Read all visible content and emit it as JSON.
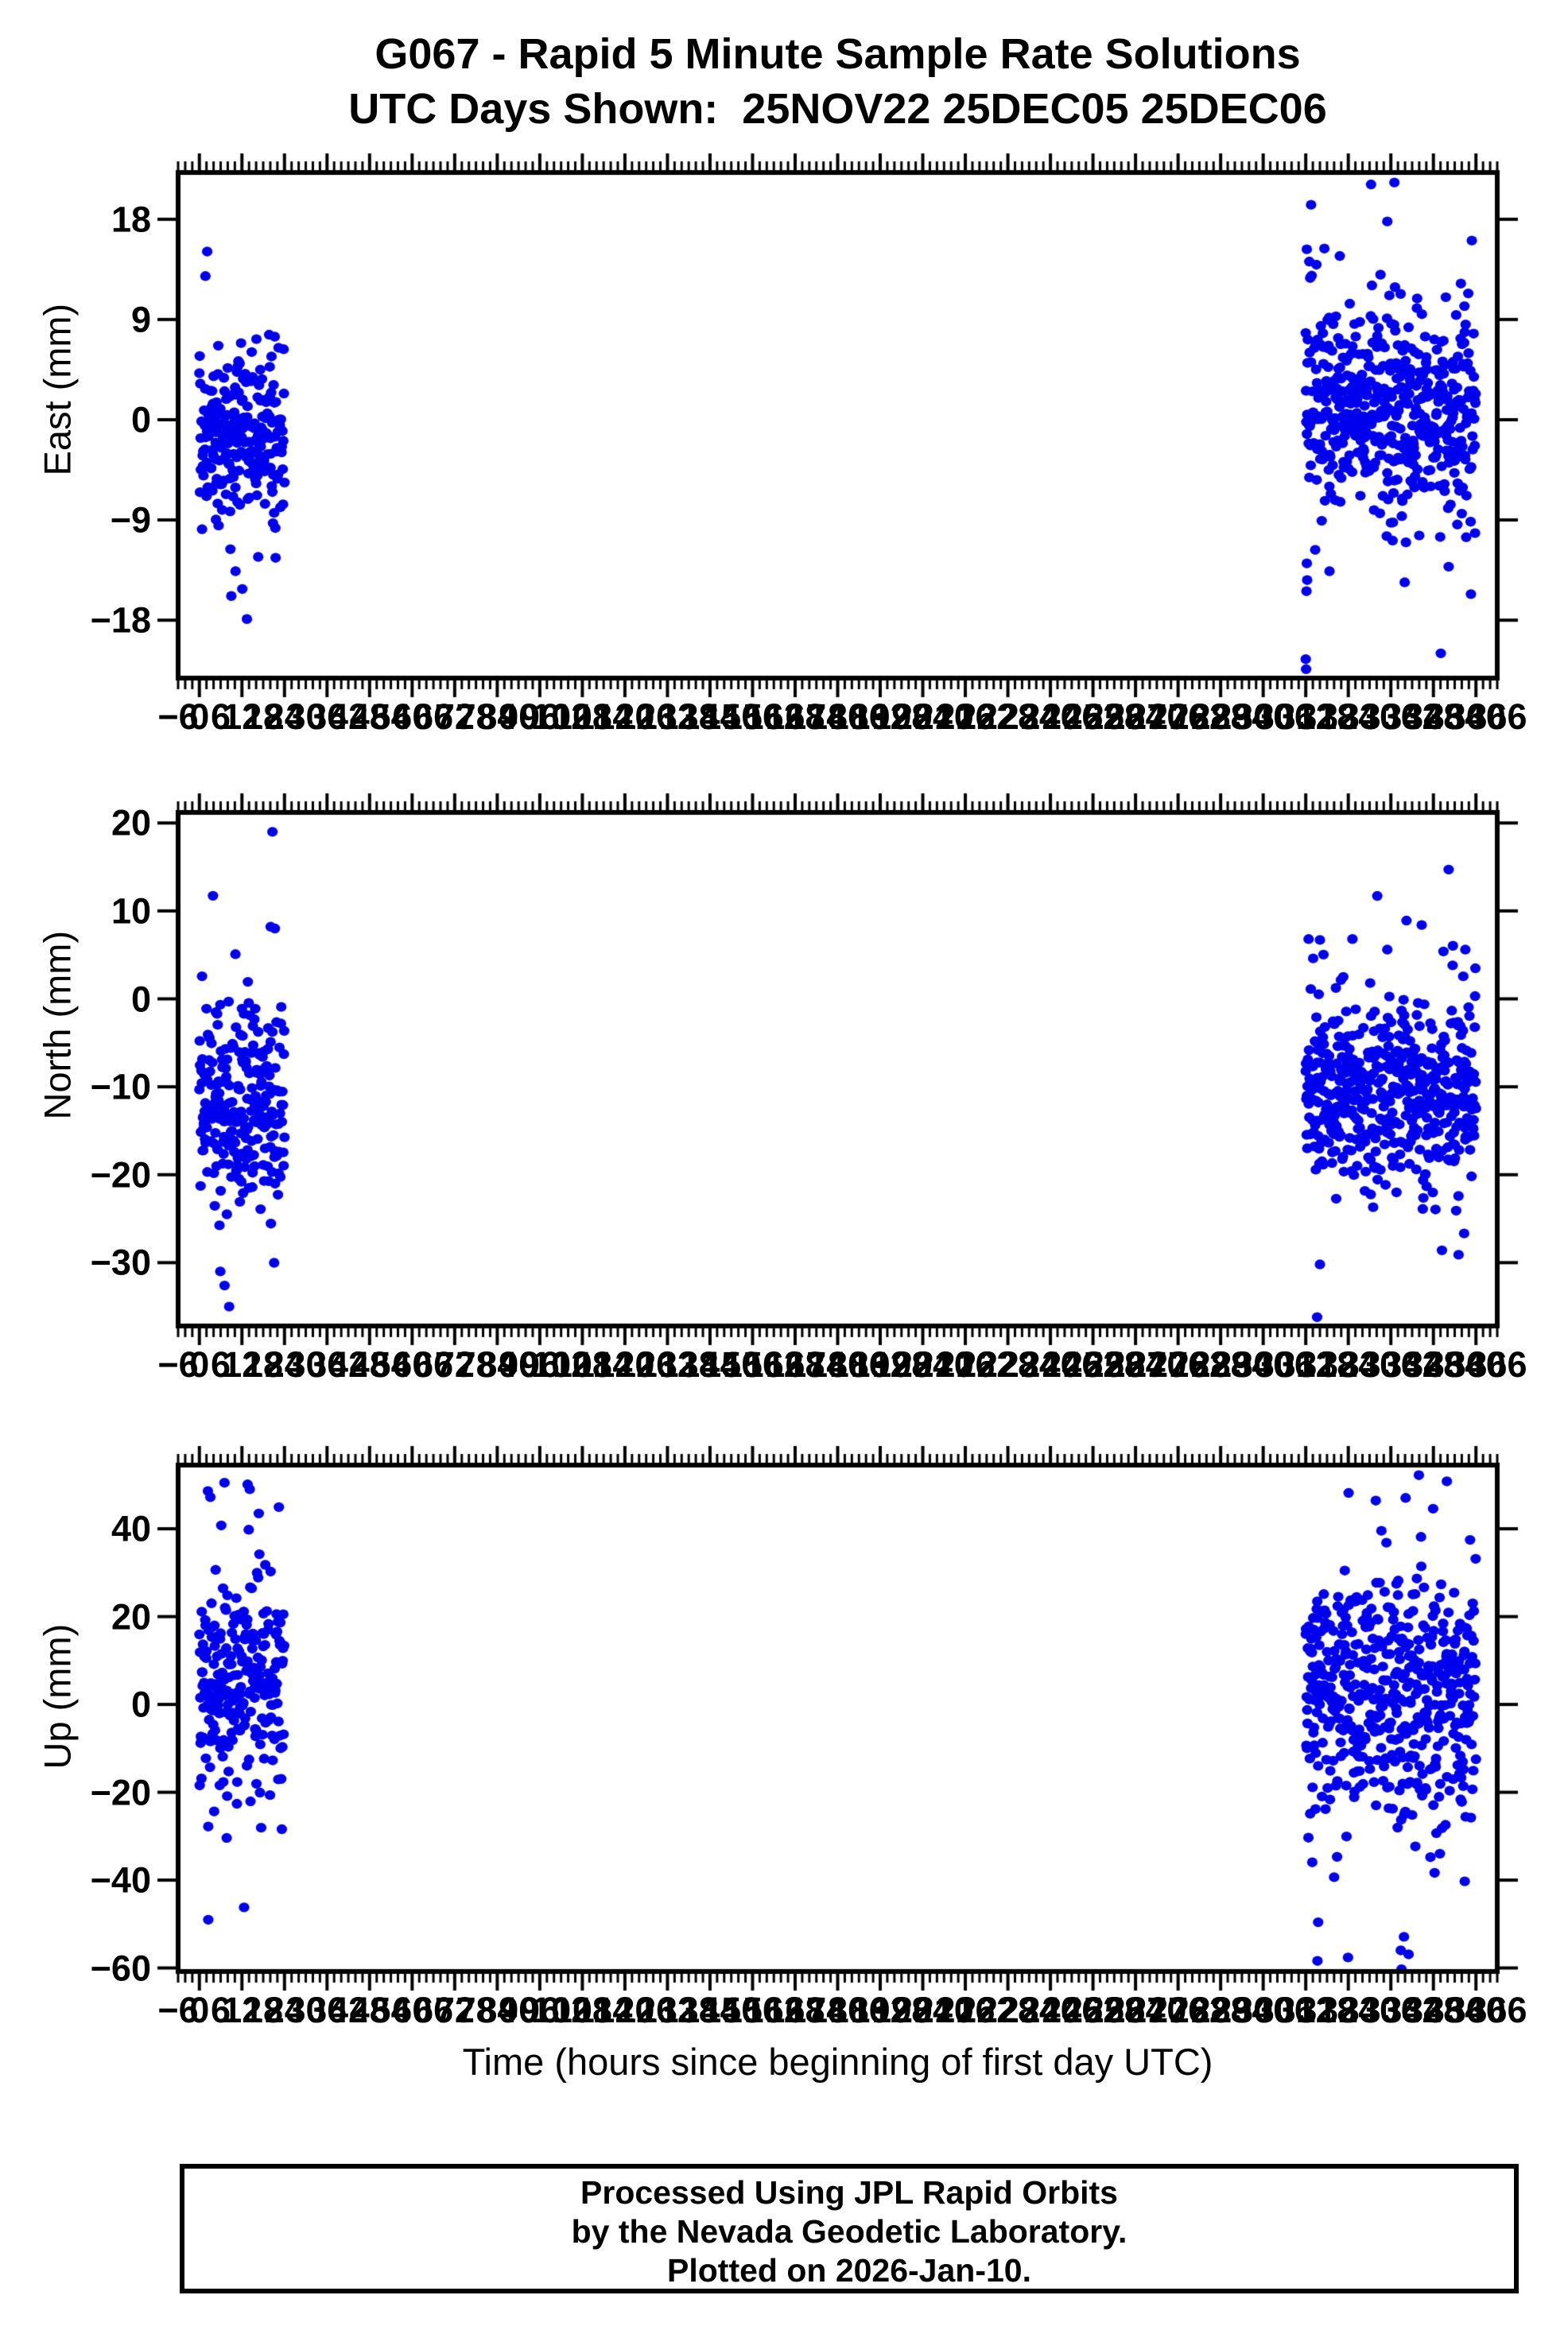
{
  "title": {
    "line1": "G067 - Rapid 5 Minute Sample Rate Solutions",
    "line2": "UTC Days Shown:  25NOV22 25DEC05 25DEC06"
  },
  "footer": {
    "lines": [
      "Processed Using JPL Rapid Orbits",
      "by the Nevada Geodetic Laboratory.",
      "Plotted on 2026-Jan-10."
    ]
  },
  "chart_data": {
    "type": "scatter",
    "title": "G067 - Rapid 5 Minute Sample Rate Solutions",
    "subtitle": "UTC Days Shown:  25NOV22 25DEC05 25DEC06",
    "xlabel": "Time (hours since beginning of first day UTC)",
    "xlim": [
      -6,
      366
    ],
    "x_annot_step": 6,
    "x_major_tick_step": 12,
    "x_minor_tick_step": 2,
    "grid": false,
    "legend": "none",
    "marker_color": "#0000ee",
    "marker_rx": 6.6,
    "marker_ry": 6.2,
    "epoch_minutes": 5,
    "seed": 20260110,
    "tail_probability": 0.045,
    "tail_scale": 2.3,
    "days_shown": [
      "25NOV22",
      "25DEC05",
      "25DEC06"
    ],
    "panels": [
      {
        "name": "east",
        "ylabel": "East (mm)",
        "ylim": [
          -23.2,
          22.2
        ],
        "yticks": [
          18,
          9,
          0,
          -9,
          -18
        ],
        "clusters": [
          {
            "t0": 0,
            "t1": 24,
            "mean": -1.3,
            "sd": 4.0,
            "dropout": 0.14
          },
          {
            "t0": 312,
            "t1": 360,
            "mean": 0.8,
            "sd": 4.6,
            "dropout": 0.11
          }
        ],
        "outliers": [
          [
            2.2,
            15.1
          ],
          [
            1.7,
            12.9
          ],
          [
            10.2,
            -13.6
          ],
          [
            12.1,
            -15.2
          ],
          [
            13.4,
            -17.9
          ],
          [
            21.5,
            -12.4
          ],
          [
            312.0,
            -21.5
          ],
          [
            312.1,
            -22.4
          ],
          [
            312.2,
            -15.4
          ],
          [
            312.4,
            -14.4
          ],
          [
            312.3,
            -12.9
          ],
          [
            318.7,
            -13.6
          ],
          [
            313.5,
            19.3
          ],
          [
            337.0,
            21.3
          ],
          [
            335.0,
            17.8
          ],
          [
            312.3,
            15.3
          ],
          [
            313.0,
            14.2
          ],
          [
            321.6,
            14.7
          ],
          [
            339.9,
            -14.6
          ],
          [
            352.3,
            -13.2
          ]
        ]
      },
      {
        "name": "north",
        "ylabel": "North (mm)",
        "ylim": [
          -37.2,
          21.2
        ],
        "yticks": [
          20,
          10,
          0,
          -10,
          -20,
          -30
        ],
        "clusters": [
          {
            "t0": 0,
            "t1": 24,
            "mean": -12.2,
            "sd": 5.8,
            "dropout": 0.14
          },
          {
            "t0": 312,
            "t1": 360,
            "mean": -11.0,
            "sd": 5.0,
            "dropout": 0.11
          }
        ],
        "outliers": [
          [
            20.6,
            19.0
          ],
          [
            20.1,
            8.2
          ],
          [
            21.3,
            8.0
          ],
          [
            5.9,
            -31.0
          ],
          [
            7.1,
            -32.6
          ],
          [
            8.4,
            -35.0
          ],
          [
            352.3,
            14.7
          ],
          [
            312.8,
            6.8
          ],
          [
            316.0,
            6.7
          ],
          [
            335.0,
            5.6
          ],
          [
            340.4,
            8.9
          ],
          [
            344.7,
            8.4
          ],
          [
            357.0,
            5.6
          ],
          [
            315.2,
            -36.2
          ],
          [
            316.0,
            -30.2
          ],
          [
            350.4,
            -28.6
          ],
          [
            355.1,
            -29.1
          ]
        ]
      },
      {
        "name": "up",
        "ylabel": "Up (mm)",
        "ylim": [
          -60.8,
          54.5
        ],
        "yticks": [
          40,
          20,
          0,
          -20,
          -40,
          -60
        ],
        "clusters": [
          {
            "t0": 0,
            "t1": 24,
            "mean": 5.0,
            "sd": 12.5,
            "dropout": 0.14
          },
          {
            "t0": 312,
            "t1": 360,
            "mean": 0.5,
            "sd": 14.5,
            "dropout": 0.11
          }
        ],
        "outliers": [
          [
            2.4,
            48.6
          ],
          [
            3.1,
            47.2
          ],
          [
            13.6,
            50.1
          ],
          [
            14.2,
            49.0
          ],
          [
            12.6,
            -46.2
          ],
          [
            2.5,
            -27.8
          ],
          [
            7.7,
            -30.4
          ],
          [
            343.9,
            52.2
          ],
          [
            351.8,
            50.8
          ],
          [
            315.3,
            -58.4
          ],
          [
            315.5,
            -49.6
          ],
          [
            339.0,
            -60.3
          ],
          [
            339.7,
            -52.9
          ],
          [
            338.8,
            -56.0
          ],
          [
            341.0,
            -56.9
          ]
        ]
      }
    ]
  }
}
